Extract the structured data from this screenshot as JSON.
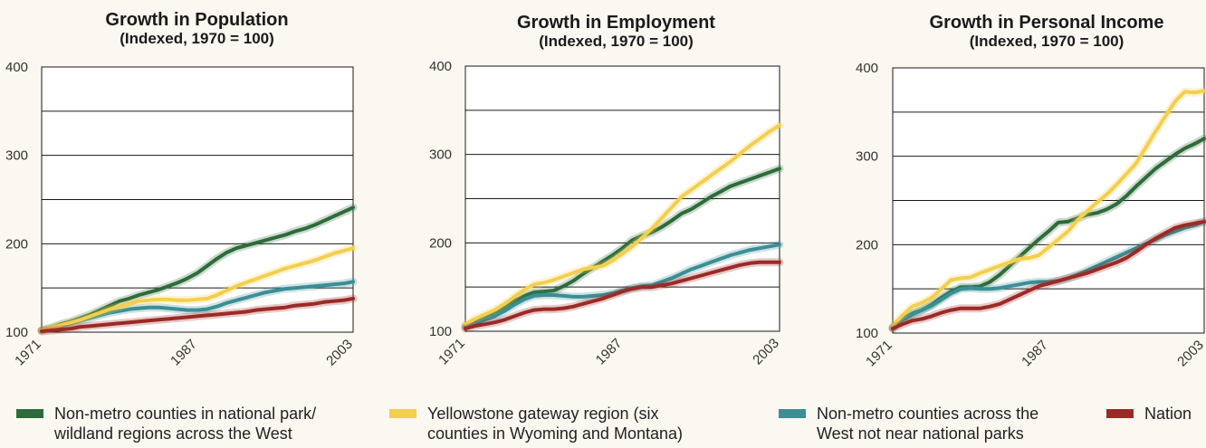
{
  "colors": {
    "background": "#fbf8f1",
    "plot_background": "#ffffff",
    "gridline": "#1a1a1a",
    "series": {
      "Non-metro counties in national park/ wildland regions across the West": "#2e6b3a",
      "Yellowstone gateway region (six counties in Wyoming and Montana)": "#f3cf4d",
      "Non-metro counties across the West not near national parks": "#3a8f95",
      "Nation": "#9b2a26"
    }
  },
  "legend": {
    "placement": "bottom",
    "items": [
      {
        "label": "Non-metro counties in national park/\nwildland regions across the West",
        "color": "#2e6b3a"
      },
      {
        "label": "Yellowstone gateway region (six\ncounties in Wyoming and Montana)",
        "color": "#f3cf4d"
      },
      {
        "label": "Non-metro counties across the\nWest not near national parks",
        "color": "#3a8f95"
      },
      {
        "label": "Nation",
        "color": "#9b2a26"
      }
    ]
  },
  "chart_data": [
    {
      "type": "line",
      "title": "Growth in Population",
      "subtitle": "(Indexed, 1970 = 100)",
      "xlabel": "",
      "ylabel": "",
      "x_tick_labels": [
        "1971",
        "1987",
        "2003"
      ],
      "y_tick_labels": [
        "100",
        "200",
        "300",
        "400"
      ],
      "x_range": [
        1971,
        2003
      ],
      "ylim": [
        100,
        400
      ],
      "grid": true,
      "x": [
        1971,
        1972,
        1973,
        1974,
        1975,
        1976,
        1977,
        1978,
        1979,
        1980,
        1981,
        1982,
        1983,
        1984,
        1985,
        1986,
        1987,
        1988,
        1989,
        1990,
        1991,
        1992,
        1993,
        1994,
        1995,
        1996,
        1997,
        1998,
        1999,
        2000,
        2001,
        2002,
        2003
      ],
      "series": [
        {
          "name": "Non-metro counties in national park/ wildland regions across the West",
          "values": [
            102,
            105,
            109,
            112,
            116,
            120,
            125,
            130,
            135,
            138,
            142,
            145,
            148,
            152,
            156,
            161,
            167,
            175,
            183,
            190,
            195,
            198,
            201,
            204,
            207,
            210,
            214,
            217,
            221,
            226,
            231,
            236,
            241
          ]
        },
        {
          "name": "Yellowstone gateway region (six counties in Wyoming and Montana)",
          "values": [
            102,
            105,
            108,
            111,
            114,
            118,
            122,
            126,
            129,
            132,
            135,
            136,
            137,
            137,
            136,
            136,
            137,
            138,
            142,
            147,
            152,
            156,
            160,
            164,
            168,
            172,
            175,
            178,
            181,
            185,
            189,
            192,
            195
          ]
        },
        {
          "name": "Non-metro counties across the West not near national parks",
          "values": [
            102,
            104,
            107,
            110,
            113,
            116,
            119,
            122,
            124,
            126,
            127,
            128,
            128,
            127,
            126,
            125,
            125,
            126,
            129,
            133,
            136,
            139,
            142,
            145,
            147,
            149,
            150,
            151,
            152,
            153,
            154,
            155,
            157
          ]
        },
        {
          "name": "Nation",
          "values": [
            101,
            102,
            103,
            104,
            106,
            107,
            108,
            109,
            110,
            111,
            112,
            113,
            114,
            115,
            116,
            117,
            118,
            119,
            120,
            121,
            122,
            123,
            125,
            126,
            127,
            128,
            130,
            131,
            132,
            134,
            135,
            136,
            138
          ]
        }
      ]
    },
    {
      "type": "line",
      "title": "Growth in Employment",
      "subtitle": "(Indexed, 1970 = 100)",
      "xlabel": "",
      "ylabel": "",
      "x_tick_labels": [
        "1971",
        "1987",
        "2003"
      ],
      "y_tick_labels": [
        "100",
        "200",
        "300",
        "400"
      ],
      "x_range": [
        1971,
        2003
      ],
      "ylim": [
        100,
        400
      ],
      "grid": true,
      "x": [
        1971,
        1972,
        1973,
        1974,
        1975,
        1976,
        1977,
        1978,
        1979,
        1980,
        1981,
        1982,
        1983,
        1984,
        1985,
        1986,
        1987,
        1988,
        1989,
        1990,
        1991,
        1992,
        1993,
        1994,
        1995,
        1996,
        1997,
        1998,
        1999,
        2000,
        2001,
        2002,
        2003
      ],
      "series": [
        {
          "name": "Non-metro counties in national park/ wildland regions across the West",
          "values": [
            105,
            111,
            116,
            121,
            127,
            134,
            140,
            144,
            145,
            146,
            151,
            157,
            165,
            172,
            179,
            186,
            194,
            203,
            208,
            212,
            218,
            225,
            233,
            238,
            245,
            252,
            258,
            264,
            268,
            272,
            276,
            280,
            284
          ]
        },
        {
          "name": "Yellowstone gateway region (six counties in Wyoming and Montana)",
          "values": [
            108,
            114,
            119,
            124,
            131,
            139,
            147,
            153,
            155,
            158,
            162,
            166,
            170,
            172,
            174,
            180,
            188,
            196,
            206,
            216,
            228,
            240,
            252,
            260,
            268,
            276,
            284,
            292,
            301,
            310,
            318,
            326,
            333
          ]
        },
        {
          "name": "Non-metro counties across the West not near national parks",
          "values": [
            106,
            109,
            113,
            117,
            123,
            130,
            136,
            140,
            141,
            141,
            140,
            139,
            139,
            140,
            141,
            143,
            146,
            149,
            151,
            152,
            156,
            160,
            165,
            170,
            174,
            178,
            182,
            186,
            189,
            192,
            194,
            196,
            198
          ]
        },
        {
          "name": "Nation",
          "values": [
            103,
            106,
            108,
            110,
            113,
            117,
            121,
            124,
            125,
            125,
            126,
            128,
            131,
            134,
            137,
            141,
            145,
            148,
            150,
            150,
            152,
            154,
            157,
            160,
            163,
            166,
            169,
            172,
            175,
            177,
            178,
            178,
            178
          ]
        }
      ]
    },
    {
      "type": "line",
      "title": "Growth in Personal Income",
      "subtitle": "(Indexed, 1970 = 100)",
      "xlabel": "",
      "ylabel": "",
      "x_tick_labels": [
        "1971",
        "1987",
        "2003"
      ],
      "y_tick_labels": [
        "100",
        "200",
        "300",
        "400"
      ],
      "x_range": [
        1971,
        2003
      ],
      "ylim": [
        100,
        400
      ],
      "grid": true,
      "x": [
        1971,
        1972,
        1973,
        1974,
        1975,
        1976,
        1977,
        1978,
        1979,
        1980,
        1981,
        1982,
        1983,
        1984,
        1985,
        1986,
        1987,
        1988,
        1989,
        1990,
        1991,
        1992,
        1993,
        1994,
        1995,
        1996,
        1997,
        1998,
        1999,
        2000,
        2001,
        2002,
        2003
      ],
      "series": [
        {
          "name": "Non-metro counties in national park/ wildland regions across the West",
          "values": [
            106,
            116,
            122,
            126,
            132,
            140,
            147,
            152,
            152,
            153,
            158,
            166,
            176,
            186,
            196,
            206,
            215,
            225,
            226,
            230,
            234,
            236,
            240,
            246,
            255,
            266,
            276,
            286,
            294,
            302,
            309,
            314,
            320
          ]
        },
        {
          "name": "Yellowstone gateway region (six counties in Wyoming and Montana)",
          "values": [
            108,
            120,
            130,
            134,
            140,
            150,
            160,
            162,
            163,
            168,
            172,
            176,
            180,
            184,
            185,
            188,
            197,
            206,
            215,
            228,
            238,
            248,
            257,
            268,
            280,
            292,
            310,
            328,
            345,
            362,
            373,
            372,
            374
          ]
        },
        {
          "name": "Non-metro counties across the West not near national parks",
          "values": [
            106,
            115,
            121,
            126,
            131,
            138,
            145,
            150,
            151,
            150,
            150,
            151,
            153,
            155,
            157,
            158,
            158,
            159,
            162,
            166,
            171,
            176,
            181,
            186,
            191,
            196,
            201,
            206,
            211,
            215,
            219,
            222,
            226
          ]
        },
        {
          "name": "Nation",
          "values": [
            105,
            110,
            114,
            116,
            119,
            123,
            126,
            128,
            128,
            128,
            130,
            133,
            138,
            143,
            148,
            153,
            156,
            159,
            162,
            165,
            168,
            172,
            176,
            180,
            185,
            192,
            200,
            207,
            213,
            219,
            222,
            224,
            226
          ]
        }
      ]
    }
  ]
}
